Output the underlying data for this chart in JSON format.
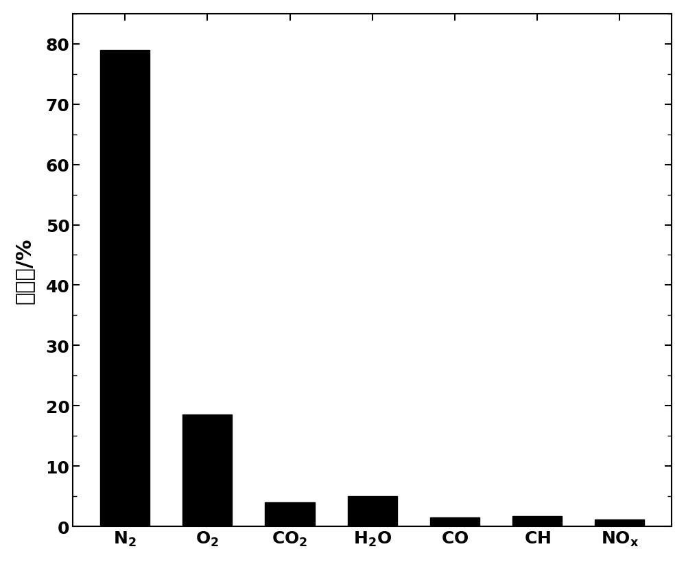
{
  "categories_raw": [
    "N",
    "O",
    "CO",
    "H",
    "CO",
    "CH",
    "NO"
  ],
  "categories_sub": [
    "2",
    "2",
    "2",
    "2O",
    "",
    "",
    "x"
  ],
  "values": [
    79,
    18.5,
    4.0,
    5.0,
    1.5,
    1.7,
    1.2
  ],
  "bar_color": "#000000",
  "ylabel": "百分比/%",
  "ylim": [
    0,
    85
  ],
  "yticks": [
    0,
    10,
    20,
    30,
    40,
    50,
    60,
    70,
    80
  ],
  "bar_width": 0.6,
  "ylabel_fontsize": 22,
  "tick_fontsize": 18,
  "xlabel_fontsize": 20,
  "background_color": "#ffffff"
}
